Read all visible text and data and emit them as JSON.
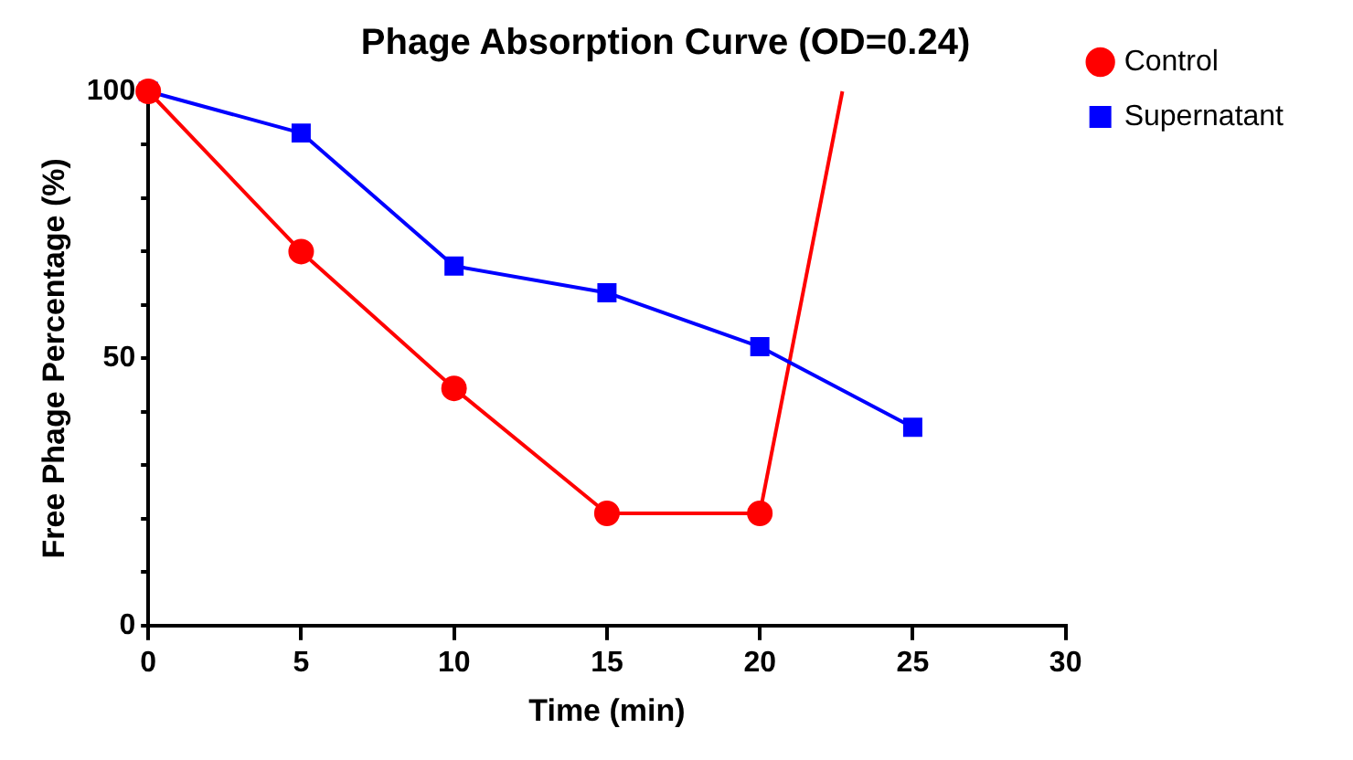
{
  "chart_data": {
    "type": "line",
    "title": "Phage Absorption Curve (OD=0.24)",
    "xlabel": "Time (min)",
    "ylabel": "Free Phage Percentage (%)",
    "xlim": [
      0,
      30
    ],
    "xticks": [
      0,
      5,
      10,
      15,
      20,
      25,
      30
    ],
    "ylim": [
      0,
      100
    ],
    "yticks": [
      0,
      {
        "value": 10,
        "label": null
      },
      {
        "value": 20,
        "label": null
      },
      {
        "value": 30,
        "label": null
      },
      {
        "value": 40,
        "label": null
      },
      50,
      {
        "value": 60,
        "label": null
      },
      {
        "value": 70,
        "label": null
      },
      {
        "value": 80,
        "label": null
      },
      {
        "value": 90,
        "label": null
      },
      100
    ],
    "grid": false,
    "legend": "top right",
    "series": [
      {
        "name": "Control",
        "color": "#ff0000",
        "marker": "circle",
        "x": [
          0,
          5,
          10,
          15,
          20
        ],
        "values": [
          100,
          70,
          44.4,
          21,
          21
        ]
      },
      {
        "name": "Supernatant",
        "color": "#0000ff",
        "marker": "square",
        "x": [
          0,
          5,
          10,
          15,
          20,
          25
        ],
        "values": [
          100,
          92.2,
          67.3,
          62.3,
          52.2,
          37.1
        ]
      },
      {
        "color": "#ff0000",
        "marker": "none",
        "x": [
          20,
          22.7
        ],
        "values": [
          21,
          100
        ]
      }
    ]
  }
}
